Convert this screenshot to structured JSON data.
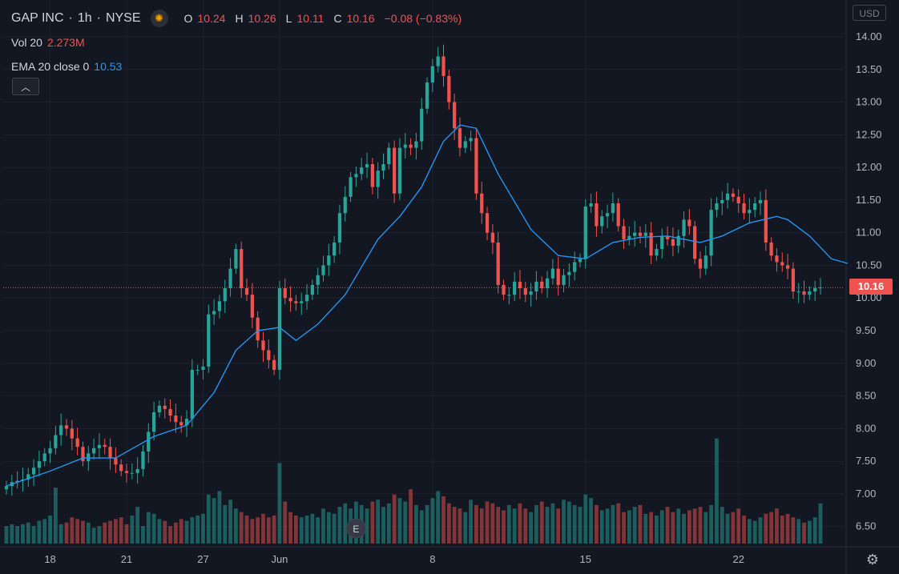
{
  "legend": {
    "symbol": "GAP INC",
    "interval": "1h",
    "exchange": "NYSE",
    "market_status_icon": "sun-icon",
    "open_label": "O",
    "open": "10.24",
    "high_label": "H",
    "high": "10.26",
    "low_label": "L",
    "low": "10.11",
    "close_label": "C",
    "close": "10.16",
    "change": "−0.08 (−0.83%)",
    "volume_label": "Vol 20",
    "volume_value": "2.273M",
    "ema_label": "EMA 20 close 0",
    "ema_value": "10.53",
    "collapse_icon": "chevron-up-icon"
  },
  "currency": "USD",
  "last_price": "10.16",
  "earnings_marker": "E",
  "settings_icon": "gear-icon",
  "colors": {
    "background": "#131722",
    "grid": "#1e222d",
    "up": "#26a69a",
    "down": "#ef5350",
    "ema": "#2196f3",
    "text": "#d1d4dc",
    "axis_text": "#b2b5be"
  },
  "chart_data": {
    "type": "candlestick",
    "xlabel": "",
    "ylabel": "",
    "ylim": [
      6.3,
      14.3
    ],
    "y_ticks": [
      "14.00",
      "13.50",
      "13.00",
      "12.50",
      "12.00",
      "11.50",
      "11.00",
      "10.50",
      "10.00",
      "9.50",
      "9.00",
      "8.50",
      "8.00",
      "7.50",
      "7.00",
      "6.50"
    ],
    "x_ticks": [
      {
        "label": "18",
        "bar": 8
      },
      {
        "label": "21",
        "bar": 22
      },
      {
        "label": "27",
        "bar": 36
      },
      {
        "label": "Jun",
        "bar": 50
      },
      {
        "label": "8",
        "bar": 78
      },
      {
        "label": "15",
        "bar": 106
      },
      {
        "label": "22",
        "bar": 134
      }
    ],
    "grid": true,
    "last_price_line": 10.16,
    "earnings_bar": 64,
    "close": [
      7.12,
      7.18,
      7.2,
      7.22,
      7.3,
      7.4,
      7.5,
      7.62,
      7.7,
      7.9,
      8.05,
      8.0,
      7.85,
      7.72,
      7.5,
      7.62,
      7.7,
      7.75,
      7.72,
      7.55,
      7.45,
      7.35,
      7.32,
      7.32,
      7.38,
      7.65,
      7.95,
      8.25,
      8.35,
      8.3,
      8.2,
      8.1,
      8.05,
      8.15,
      8.9,
      8.9,
      8.95,
      9.75,
      9.8,
      9.95,
      10.15,
      10.45,
      10.75,
      10.15,
      10.05,
      9.7,
      9.35,
      9.2,
      9.05,
      8.9,
      10.15,
      10.0,
      9.95,
      9.92,
      9.95,
      10.05,
      10.2,
      10.35,
      10.5,
      10.65,
      10.85,
      11.3,
      11.55,
      11.85,
      11.9,
      12.0,
      12.05,
      11.7,
      11.95,
      12.05,
      12.3,
      11.6,
      12.3,
      12.35,
      12.3,
      12.4,
      12.9,
      13.3,
      13.55,
      13.7,
      13.4,
      13.0,
      12.6,
      12.3,
      12.4,
      12.45,
      11.6,
      11.3,
      11.0,
      10.85,
      10.2,
      10.05,
      10.05,
      10.25,
      10.15,
      10.05,
      10.1,
      10.25,
      10.15,
      10.3,
      10.45,
      10.2,
      10.35,
      10.4,
      10.55,
      10.6,
      11.4,
      11.45,
      11.1,
      11.25,
      11.3,
      11.45,
      11.1,
      10.9,
      10.95,
      11.0,
      10.95,
      11.0,
      10.65,
      10.75,
      10.95,
      10.9,
      10.8,
      10.95,
      11.2,
      11.1,
      10.6,
      10.45,
      10.65,
      11.35,
      11.45,
      11.5,
      11.6,
      11.55,
      11.45,
      11.3,
      11.35,
      11.45,
      11.5,
      10.85,
      10.65,
      10.55,
      10.5,
      10.45,
      10.1,
      10.1,
      10.05,
      10.1,
      10.15,
      10.16
    ],
    "series": [
      {
        "name": "EMA 20 close 0",
        "points": [
          [
            0,
            7.12
          ],
          [
            8,
            7.35
          ],
          [
            14,
            7.55
          ],
          [
            20,
            7.55
          ],
          [
            27,
            7.88
          ],
          [
            33,
            8.05
          ],
          [
            38,
            8.55
          ],
          [
            42,
            9.2
          ],
          [
            46,
            9.5
          ],
          [
            50,
            9.55
          ],
          [
            53,
            9.35
          ],
          [
            57,
            9.6
          ],
          [
            62,
            10.05
          ],
          [
            68,
            10.9
          ],
          [
            72,
            11.25
          ],
          [
            76,
            11.7
          ],
          [
            80,
            12.4
          ],
          [
            83,
            12.65
          ],
          [
            86,
            12.6
          ],
          [
            90,
            11.9
          ],
          [
            96,
            11.05
          ],
          [
            101,
            10.65
          ],
          [
            106,
            10.6
          ],
          [
            111,
            10.85
          ],
          [
            116,
            10.93
          ],
          [
            121,
            10.95
          ],
          [
            127,
            10.85
          ],
          [
            131,
            10.95
          ],
          [
            136,
            11.15
          ],
          [
            141,
            11.25
          ],
          [
            143,
            11.2
          ],
          [
            147,
            10.95
          ],
          [
            151,
            10.6
          ],
          [
            154,
            10.53
          ]
        ]
      }
    ],
    "volume": {
      "name": "Vol 20",
      "last": "2.273M",
      "max": 8.0,
      "values": [
        1.0,
        1.1,
        1.0,
        1.1,
        1.2,
        1.0,
        1.3,
        1.4,
        1.6,
        3.2,
        1.1,
        1.2,
        1.5,
        1.4,
        1.3,
        1.2,
        0.9,
        1.0,
        1.2,
        1.3,
        1.4,
        1.5,
        1.1,
        1.6,
        2.1,
        1.0,
        1.8,
        1.7,
        1.4,
        1.3,
        1.0,
        1.2,
        1.4,
        1.3,
        1.5,
        1.6,
        1.7,
        2.8,
        2.6,
        3.0,
        2.2,
        2.5,
        2.0,
        1.8,
        1.6,
        1.4,
        1.5,
        1.7,
        1.5,
        1.6,
        4.6,
        2.4,
        1.8,
        1.6,
        1.5,
        1.6,
        1.7,
        1.5,
        2.0,
        1.8,
        1.7,
        2.1,
        2.3,
        2.0,
        2.4,
        2.2,
        2.0,
        2.4,
        2.5,
        2.1,
        2.3,
        2.8,
        2.6,
        2.4,
        3.1,
        2.2,
        1.9,
        2.2,
        2.6,
        3.0,
        2.7,
        2.3,
        2.1,
        2.0,
        1.8,
        2.5,
        2.2,
        2.0,
        2.4,
        2.3,
        2.1,
        1.9,
        2.2,
        2.0,
        2.3,
        2.0,
        1.8,
        2.2,
        2.4,
        2.1,
        2.3,
        2.0,
        2.5,
        2.4,
        2.2,
        2.1,
        2.8,
        2.6,
        2.2,
        1.9,
        2.0,
        2.2,
        2.3,
        1.8,
        1.9,
        2.1,
        2.2,
        1.7,
        1.8,
        1.6,
        1.9,
        2.1,
        1.8,
        2.0,
        1.7,
        1.9,
        2.0,
        2.1,
        1.8,
        2.2,
        6.0,
        2.1,
        1.7,
        1.8,
        2.0,
        1.6,
        1.4,
        1.3,
        1.5,
        1.7,
        1.8,
        2.0,
        1.6,
        1.7,
        1.5,
        1.4,
        1.2,
        1.3,
        1.5,
        2.3
      ]
    }
  }
}
